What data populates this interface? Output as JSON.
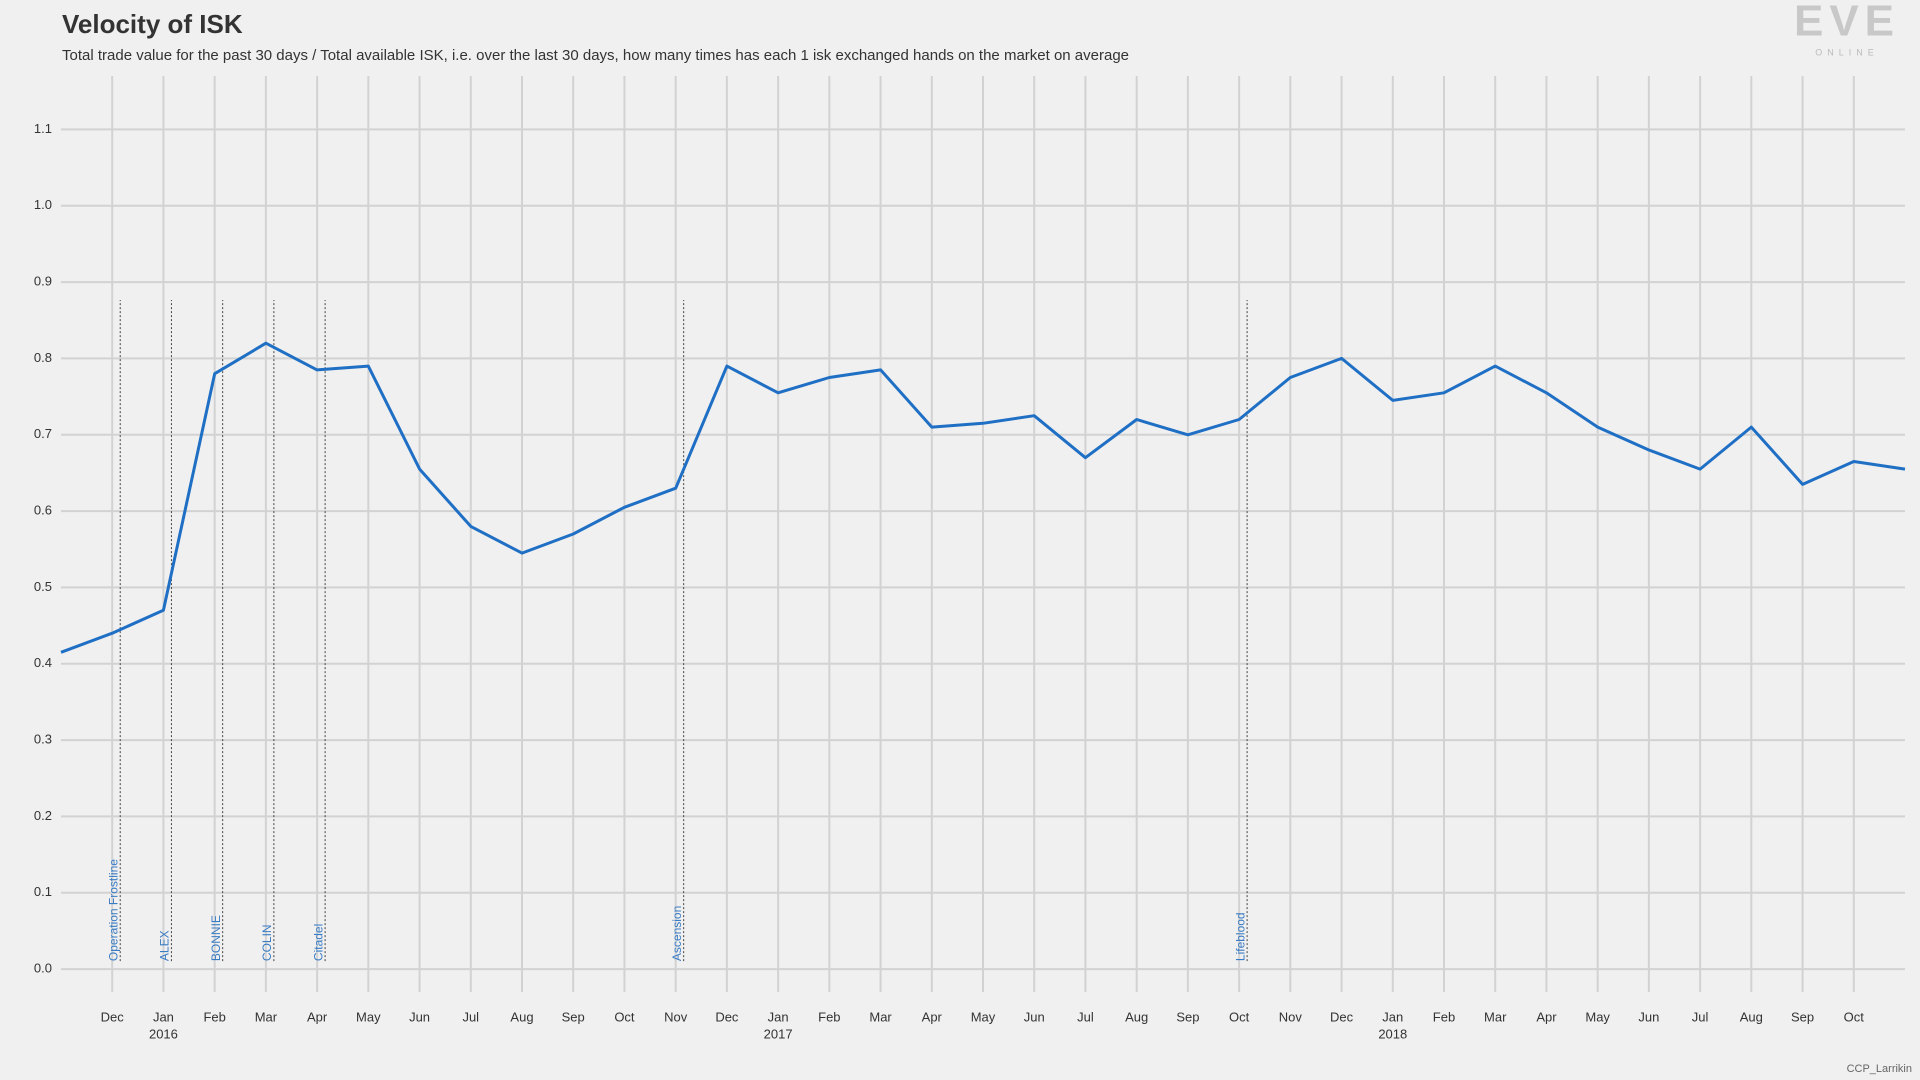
{
  "chart_data": {
    "type": "line",
    "title": "Velocity of ISK",
    "subtitle": "Total trade value for the past 30 days / Total available ISK, i.e. over the last 30 days, how many times has each 1 isk exchanged hands on the market on average",
    "logo": "EVE",
    "logo_sub": "ONLINE",
    "credit": "CCP_Larrikin",
    "color": "#1f6fc5",
    "x": [
      "2015-11",
      "2015-12",
      "2016-01",
      "2016-02",
      "2016-03",
      "2016-04",
      "2016-05",
      "2016-06",
      "2016-07",
      "2016-08",
      "2016-09",
      "2016-10",
      "2016-11",
      "2016-12",
      "2017-01",
      "2017-02",
      "2017-03",
      "2017-04",
      "2017-05",
      "2017-06",
      "2017-07",
      "2017-08",
      "2017-09",
      "2017-10",
      "2017-11",
      "2017-12",
      "2018-01",
      "2018-02",
      "2018-03",
      "2018-04",
      "2018-05",
      "2018-06",
      "2018-07",
      "2018-08",
      "2018-09",
      "2018-10",
      "2018-11"
    ],
    "values": [
      0.415,
      0.44,
      0.47,
      0.78,
      0.82,
      0.785,
      0.79,
      0.655,
      0.58,
      0.545,
      0.57,
      0.605,
      0.63,
      0.79,
      0.755,
      0.775,
      0.785,
      0.71,
      0.715,
      0.725,
      0.67,
      0.72,
      0.7,
      0.72,
      0.775,
      0.8,
      0.745,
      0.755,
      0.79,
      0.755,
      0.71,
      0.68,
      0.655,
      0.71,
      0.635,
      0.665,
      0.655
    ],
    "xlim": [
      "2015-11",
      "2018-11"
    ],
    "xticks": [
      {
        "value": "2015-12",
        "label": "Dec"
      },
      {
        "value": "2016-01",
        "label": "Jan"
      },
      {
        "value": "2016-02",
        "label": "Feb"
      },
      {
        "value": "2016-03",
        "label": "Mar"
      },
      {
        "value": "2016-04",
        "label": "Apr"
      },
      {
        "value": "2016-05",
        "label": "May"
      },
      {
        "value": "2016-06",
        "label": "Jun"
      },
      {
        "value": "2016-07",
        "label": "Jul"
      },
      {
        "value": "2016-08",
        "label": "Aug"
      },
      {
        "value": "2016-09",
        "label": "Sep"
      },
      {
        "value": "2016-10",
        "label": "Oct"
      },
      {
        "value": "2016-11",
        "label": "Nov"
      },
      {
        "value": "2016-12",
        "label": "Dec"
      },
      {
        "value": "2017-01",
        "label": "Jan"
      },
      {
        "value": "2017-02",
        "label": "Feb"
      },
      {
        "value": "2017-03",
        "label": "Mar"
      },
      {
        "value": "2017-04",
        "label": "Apr"
      },
      {
        "value": "2017-05",
        "label": "May"
      },
      {
        "value": "2017-06",
        "label": "Jun"
      },
      {
        "value": "2017-07",
        "label": "Jul"
      },
      {
        "value": "2017-08",
        "label": "Aug"
      },
      {
        "value": "2017-09",
        "label": "Sep"
      },
      {
        "value": "2017-10",
        "label": "Oct"
      },
      {
        "value": "2017-11",
        "label": "Nov"
      },
      {
        "value": "2017-12",
        "label": "Dec"
      },
      {
        "value": "2018-01",
        "label": "Jan"
      },
      {
        "value": "2018-02",
        "label": "Feb"
      },
      {
        "value": "2018-03",
        "label": "Mar"
      },
      {
        "value": "2018-04",
        "label": "Apr"
      },
      {
        "value": "2018-05",
        "label": "May"
      },
      {
        "value": "2018-06",
        "label": "Jun"
      },
      {
        "value": "2018-07",
        "label": "Jul"
      },
      {
        "value": "2018-08",
        "label": "Aug"
      },
      {
        "value": "2018-09",
        "label": "Sep"
      },
      {
        "value": "2018-10",
        "label": "Oct"
      }
    ],
    "xtick_years": [
      {
        "value": "2016-01",
        "label": "2016"
      },
      {
        "value": "2017-01",
        "label": "2017"
      },
      {
        "value": "2018-01",
        "label": "2018"
      }
    ],
    "ylim": [
      -0.03,
      1.17
    ],
    "yticks": [
      {
        "value": 0,
        "label": "0.0"
      },
      0.1,
      0.2,
      0.3,
      0.4,
      0.5,
      0.6,
      0.7,
      0.8,
      0.9,
      {
        "value": 1,
        "label": "1.0"
      },
      1.1
    ],
    "grid": true,
    "annotations": [
      {
        "x": "2015-12",
        "label": "Operation Frostline"
      },
      {
        "x": "2016-01",
        "label": "ALEX"
      },
      {
        "x": "2016-02",
        "label": "BONNIE"
      },
      {
        "x": "2016-03",
        "label": "COLIN"
      },
      {
        "x": "2016-04",
        "label": "Citadel"
      },
      {
        "x": "2016-11",
        "label": "Ascension"
      },
      {
        "x": "2017-10",
        "label": "Lifeblood"
      }
    ]
  }
}
